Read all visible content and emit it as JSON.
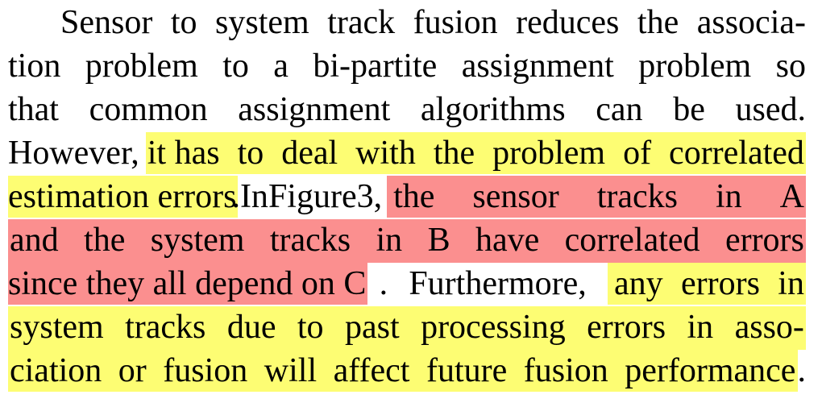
{
  "paragraph": {
    "lines": [
      [
        "Sensor",
        "to",
        "system",
        "track",
        "fusion",
        "reduces",
        "the",
        "associa-"
      ],
      [
        "tion",
        "problem",
        "to",
        "a",
        "bi-partite",
        "assignment",
        "problem",
        "so"
      ],
      [
        "that",
        "common",
        "assignment",
        "algorithms",
        "can",
        "be",
        "used."
      ],
      [
        "However,",
        "it has",
        "to",
        "deal",
        "with",
        "the",
        "problem",
        "of",
        "correlated"
      ],
      [
        "estimation",
        "errors",
        ".",
        "In",
        "Figure",
        "3,",
        "the",
        "sensor",
        "tracks",
        "in",
        "A"
      ],
      [
        "and",
        "the",
        "system",
        "tracks",
        "in",
        "B",
        "have",
        "correlated",
        "errors"
      ],
      [
        "since",
        "they",
        "all",
        "depend",
        "on",
        "C",
        ".",
        "Furthermore,",
        "any",
        "errors",
        "in"
      ],
      [
        "system",
        "tracks",
        "due",
        "to",
        "past",
        "processing",
        "errors",
        "in",
        "asso-"
      ],
      [
        "ciation",
        "or",
        "fusion",
        "will",
        "affect",
        "future",
        "fusion",
        "performance",
        "."
      ]
    ]
  },
  "highlights": {
    "yellow": "#fdfd73",
    "red": "#fb8f8f"
  }
}
